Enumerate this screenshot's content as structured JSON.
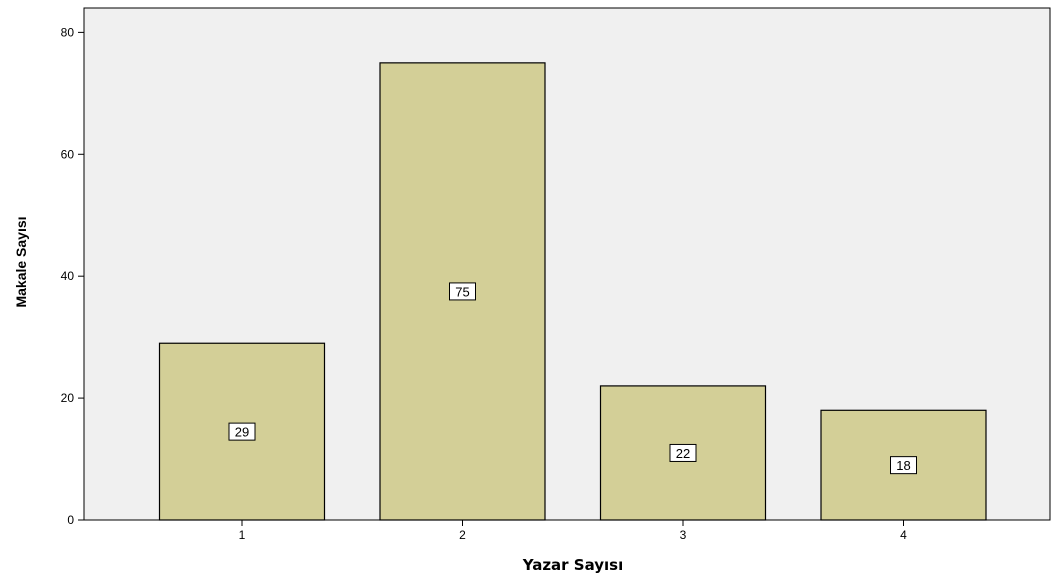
{
  "chart_data": {
    "type": "bar",
    "categories": [
      "1",
      "2",
      "3",
      "4"
    ],
    "values": [
      29,
      75,
      22,
      18
    ],
    "data_labels": [
      "29",
      "75",
      "22",
      "18"
    ],
    "title": "",
    "xlabel": "Yazar Sayısı",
    "ylabel": "Makale Sayısı",
    "ylim": [
      0,
      84
    ],
    "yticks": [
      0,
      20,
      40,
      60,
      80
    ],
    "ytick_labels": [
      "0",
      "20",
      "40",
      "60",
      "80"
    ],
    "grid": false,
    "legend": "none",
    "colors": {
      "bar_fill": "#d3cf97",
      "bar_stroke": "#000000",
      "plot_background": "#f0f0f0",
      "axis": "#000000",
      "label_box_fill": "#ffffff"
    }
  }
}
